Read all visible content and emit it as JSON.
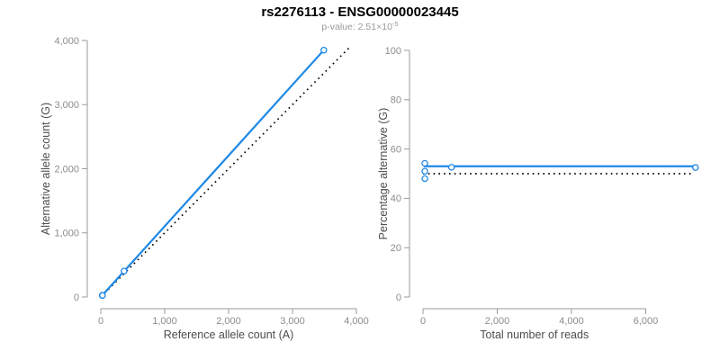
{
  "header": {
    "title": "rs2276113 - ENSG00000023445",
    "subtitle_prefix": "p-value: 2.51×10",
    "subtitle_exponent": "-5"
  },
  "colors": {
    "accent_blue": "#1E88E5",
    "reference_line": "#000000",
    "axis": "#9a9a9a",
    "tick_label": "#8c8c8c",
    "axis_title": "#4d4d4d"
  },
  "chart_data": [
    {
      "id": "allele-counts",
      "type": "scatter",
      "xlabel": "Reference allele count (A)",
      "ylabel": "Alternative allele count (G)",
      "xlim": [
        0,
        4000
      ],
      "ylim": [
        0,
        4000
      ],
      "xtick_values": [
        0,
        1000,
        2000,
        3000,
        4000
      ],
      "xtick_labels": [
        "0",
        "1,000",
        "2,000",
        "3,000",
        "4,000"
      ],
      "ytick_values": [
        0,
        1000,
        2000,
        3000,
        4000
      ],
      "ytick_labels": [
        "0",
        "1,000",
        "2,000",
        "3,000",
        "4,000"
      ],
      "points_x": [
        22,
        24,
        26,
        364,
        3490
      ],
      "points_y": [
        26,
        25,
        24,
        404,
        3850
      ],
      "fit_line": {
        "x": [
          0,
          3490
        ],
        "y": [
          0,
          3850
        ]
      },
      "reference_line": {
        "x": [
          0,
          3900
        ],
        "y": [
          0,
          3900
        ],
        "style": "dotted"
      },
      "legend": "none",
      "grid": false
    },
    {
      "id": "pct-alternative",
      "type": "scatter",
      "xlabel": "Total number of reads",
      "ylabel": "Percentage alternative (G)",
      "xlim": [
        0,
        6000
      ],
      "ylim": [
        0,
        100
      ],
      "xtick_values": [
        0,
        2000,
        4000,
        6000
      ],
      "xtick_labels": [
        "0",
        "2,000",
        "4,000",
        "6,000"
      ],
      "ytick_values": [
        0,
        20,
        40,
        60,
        80,
        100
      ],
      "ytick_labels": [
        "0",
        "20",
        "40",
        "60",
        "80",
        "100"
      ],
      "points_x": [
        48,
        49,
        50,
        768,
        7340
      ],
      "points_y": [
        54.2,
        51,
        48,
        52.6,
        52.5
      ],
      "fit_line": {
        "x": [
          48,
          7340
        ],
        "y": [
          53,
          53
        ]
      },
      "reference_line": {
        "x": [
          0,
          7300
        ],
        "y": [
          50,
          50
        ],
        "style": "dotted"
      },
      "legend": "none",
      "grid": false
    }
  ]
}
